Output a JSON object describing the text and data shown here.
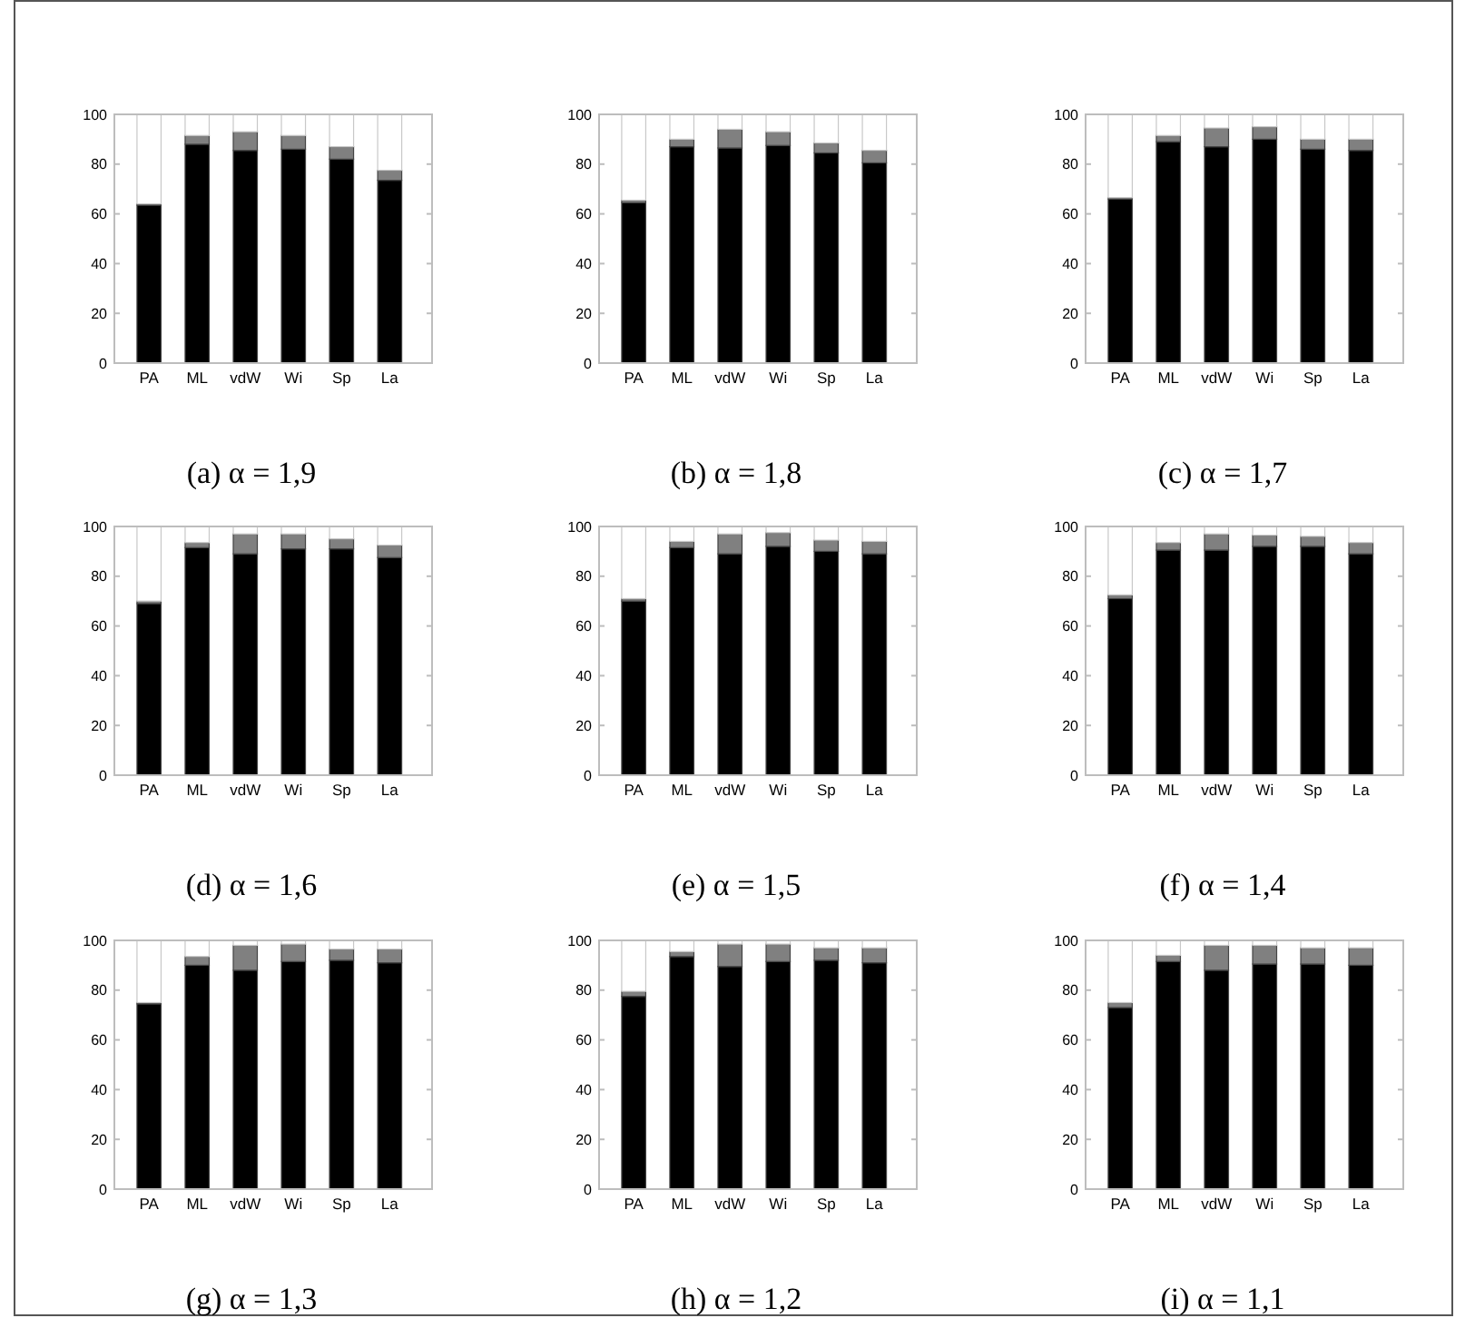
{
  "chart_data": [
    {
      "type": "bar",
      "stacked": true,
      "title": "(a) α = 1,9",
      "categories": [
        "PA",
        "ML",
        "vdW",
        "Wi",
        "Sp",
        "La"
      ],
      "ylim": [
        0,
        100
      ],
      "yticks": [
        0,
        20,
        40,
        60,
        80,
        100
      ],
      "series": [
        {
          "color": "#000000",
          "values": [
            63.5,
            88,
            85.5,
            86,
            82,
            73.5
          ]
        },
        {
          "color": "#808080",
          "values": [
            0.5,
            3.5,
            7.5,
            5.5,
            5,
            4
          ]
        },
        {
          "color": "#ffffff",
          "values": [
            36,
            8.5,
            7,
            8.5,
            13,
            22.5
          ]
        }
      ]
    },
    {
      "type": "bar",
      "stacked": true,
      "title": "(b) α = 1,8",
      "categories": [
        "PA",
        "ML",
        "vdW",
        "Wi",
        "Sp",
        "La"
      ],
      "ylim": [
        0,
        100
      ],
      "yticks": [
        0,
        20,
        40,
        60,
        80,
        100
      ],
      "series": [
        {
          "color": "#000000",
          "values": [
            64.5,
            87,
            86.5,
            87.5,
            84.5,
            80.5
          ]
        },
        {
          "color": "#808080",
          "values": [
            1,
            3,
            7.5,
            5.5,
            4,
            5
          ]
        },
        {
          "color": "#ffffff",
          "values": [
            34.5,
            10,
            6,
            7,
            11.5,
            14.5
          ]
        }
      ]
    },
    {
      "type": "bar",
      "stacked": true,
      "title": "(c) α = 1,7",
      "categories": [
        "PA",
        "ML",
        "vdW",
        "Wi",
        "Sp",
        "La"
      ],
      "ylim": [
        0,
        100
      ],
      "yticks": [
        0,
        20,
        40,
        60,
        80,
        100
      ],
      "series": [
        {
          "color": "#000000",
          "values": [
            66,
            89,
            87,
            90,
            86,
            85.5
          ]
        },
        {
          "color": "#808080",
          "values": [
            0.5,
            2.5,
            7.5,
            5,
            4,
            4.5
          ]
        },
        {
          "color": "#ffffff",
          "values": [
            33.5,
            8.5,
            5.5,
            5,
            10,
            10
          ]
        }
      ]
    },
    {
      "type": "bar",
      "stacked": true,
      "title": "(d) α = 1,6",
      "categories": [
        "PA",
        "ML",
        "vdW",
        "Wi",
        "Sp",
        "La"
      ],
      "ylim": [
        0,
        100
      ],
      "yticks": [
        0,
        20,
        40,
        60,
        80,
        100
      ],
      "series": [
        {
          "color": "#000000",
          "values": [
            69,
            91.5,
            89,
            91,
            91,
            87.5
          ]
        },
        {
          "color": "#808080",
          "values": [
            1,
            2,
            8,
            6,
            4,
            5
          ]
        },
        {
          "color": "#ffffff",
          "values": [
            30,
            6.5,
            3,
            3,
            5,
            7.5
          ]
        }
      ]
    },
    {
      "type": "bar",
      "stacked": true,
      "title": "(e) α = 1,5",
      "categories": [
        "PA",
        "ML",
        "vdW",
        "Wi",
        "Sp",
        "La"
      ],
      "ylim": [
        0,
        100
      ],
      "yticks": [
        0,
        20,
        40,
        60,
        80,
        100
      ],
      "series": [
        {
          "color": "#000000",
          "values": [
            70,
            91.5,
            89,
            92,
            90,
            89
          ]
        },
        {
          "color": "#808080",
          "values": [
            1,
            2.5,
            8,
            5.5,
            4.5,
            5
          ]
        },
        {
          "color": "#ffffff",
          "values": [
            29,
            6,
            3,
            2.5,
            5.5,
            6
          ]
        }
      ]
    },
    {
      "type": "bar",
      "stacked": true,
      "title": "(f) α = 1,4",
      "categories": [
        "PA",
        "ML",
        "vdW",
        "Wi",
        "Sp",
        "La"
      ],
      "ylim": [
        0,
        100
      ],
      "yticks": [
        0,
        20,
        40,
        60,
        80,
        100
      ],
      "series": [
        {
          "color": "#000000",
          "values": [
            71,
            90.5,
            90.5,
            92,
            92,
            89
          ]
        },
        {
          "color": "#808080",
          "values": [
            1.5,
            3,
            6.5,
            4.5,
            4,
            4.5
          ]
        },
        {
          "color": "#ffffff",
          "values": [
            27.5,
            6.5,
            3,
            3.5,
            4,
            6.5
          ]
        }
      ]
    },
    {
      "type": "bar",
      "stacked": true,
      "title": "(g) α = 1,3",
      "categories": [
        "PA",
        "ML",
        "vdW",
        "Wi",
        "Sp",
        "La"
      ],
      "ylim": [
        0,
        100
      ],
      "yticks": [
        0,
        20,
        40,
        60,
        80,
        100
      ],
      "series": [
        {
          "color": "#000000",
          "values": [
            74.5,
            90,
            88,
            91.5,
            92,
            91
          ]
        },
        {
          "color": "#808080",
          "values": [
            0.5,
            3.5,
            10,
            7,
            4.5,
            5.5
          ]
        },
        {
          "color": "#ffffff",
          "values": [
            25,
            6.5,
            2,
            1.5,
            3.5,
            3.5
          ]
        }
      ]
    },
    {
      "type": "bar",
      "stacked": true,
      "title": "(h) α = 1,2",
      "categories": [
        "PA",
        "ML",
        "vdW",
        "Wi",
        "Sp",
        "La"
      ],
      "ylim": [
        0,
        100
      ],
      "yticks": [
        0,
        20,
        40,
        60,
        80,
        100
      ],
      "series": [
        {
          "color": "#000000",
          "values": [
            77.5,
            93.5,
            89.5,
            91.5,
            92,
            91
          ]
        },
        {
          "color": "#808080",
          "values": [
            2,
            2,
            9,
            7,
            5,
            6
          ]
        },
        {
          "color": "#ffffff",
          "values": [
            20.5,
            4.5,
            1.5,
            1.5,
            3,
            3
          ]
        }
      ]
    },
    {
      "type": "bar",
      "stacked": true,
      "title": "(i) α = 1,1",
      "categories": [
        "PA",
        "ML",
        "vdW",
        "Wi",
        "Sp",
        "La"
      ],
      "ylim": [
        0,
        100
      ],
      "yticks": [
        0,
        20,
        40,
        60,
        80,
        100
      ],
      "series": [
        {
          "color": "#000000",
          "values": [
            73,
            91.5,
            88,
            90.5,
            90.5,
            90
          ]
        },
        {
          "color": "#808080",
          "values": [
            2,
            2.5,
            10,
            7.5,
            6.5,
            7
          ]
        },
        {
          "color": "#ffffff",
          "values": [
            25,
            6,
            2,
            2,
            3,
            3
          ]
        }
      ]
    }
  ]
}
